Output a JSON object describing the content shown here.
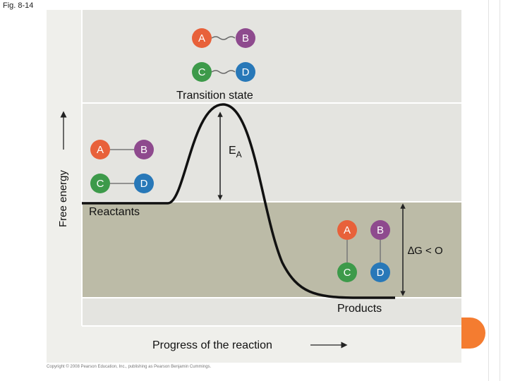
{
  "figure": {
    "label": "Fig. 8-14",
    "copyright": "Copyright © 2008 Pearson Education, Inc., publishing as Pearson Benjamin Cummings."
  },
  "axes": {
    "y_label": "Free energy",
    "x_label": "Progress of the reaction"
  },
  "states": {
    "transition": "Transition state",
    "reactants": "Reactants",
    "products": "Products"
  },
  "annotations": {
    "activation_energy_main": "E",
    "activation_energy_sub": "A",
    "delta_g": "∆G < O"
  },
  "molecules": {
    "a": "A",
    "b": "B",
    "c": "C",
    "d": "D"
  },
  "colors": {
    "a": "#e8613a",
    "b": "#8e4a8e",
    "c": "#3d9a4a",
    "d": "#2878b8",
    "panel_top": "#e6e6e2",
    "panel_band": "#bcbba7",
    "curve": "#111111",
    "accent": "#f47c30"
  }
}
